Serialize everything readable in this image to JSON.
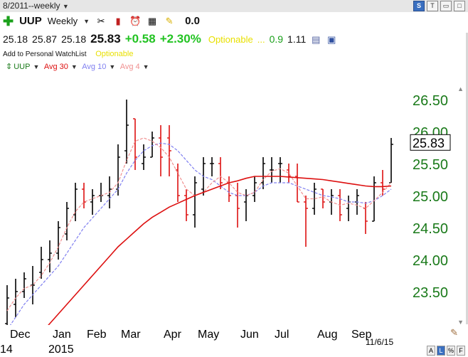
{
  "window": {
    "title": "8/2011--weekly"
  },
  "header": {
    "symbol": "UUP",
    "period": "Weekly",
    "zero_value": "0.0",
    "open": "25.18",
    "high": "25.87",
    "low": "25.18",
    "last": "25.83",
    "change": "+0.58",
    "change_pct": "+2.30%",
    "optionable": "Optionable",
    "dots": "...",
    "val1": "0.9",
    "val2": "1.11",
    "watchlist": "Add to Personal WatchList",
    "optionable2": "Optionable"
  },
  "legend": {
    "symbol": "UUP",
    "ma30": "Avg 30",
    "ma10": "Avg 10",
    "ma4": "Avg 4"
  },
  "colors": {
    "ma30": "#dd1010",
    "ma10": "#8080f0",
    "ma4": "#f09090",
    "up": "#000000",
    "down": "#dd1010",
    "axis": "#1a7a1a"
  },
  "chart_data": {
    "type": "bar",
    "subtype": "ohlc",
    "x_labels": [
      "Dec",
      "Jan",
      "Feb",
      "Mar",
      "Apr",
      "May",
      "Jun",
      "Jul",
      "Aug",
      "Sep"
    ],
    "year_labels": [
      "14",
      "2015"
    ],
    "date_label": "11/6/15",
    "y_ticks": [
      "26.50",
      "26.00",
      "25.50",
      "25.00",
      "24.50",
      "24.00",
      "23.50"
    ],
    "ylim": [
      23.0,
      26.8
    ],
    "last_price_label": "25.83",
    "ohlc": [
      [
        23.0,
        23.6,
        22.9,
        23.4
      ],
      [
        23.3,
        23.7,
        23.1,
        23.5
      ],
      [
        23.5,
        23.8,
        23.4,
        23.7
      ],
      [
        23.6,
        23.9,
        23.3,
        23.6
      ],
      [
        23.8,
        24.2,
        23.7,
        24.0
      ],
      [
        24.0,
        24.3,
        23.8,
        24.1
      ],
      [
        24.1,
        24.6,
        24.0,
        24.5
      ],
      [
        24.4,
        24.9,
        24.3,
        24.8
      ],
      [
        24.7,
        25.2,
        24.6,
        25.1
      ],
      [
        25.1,
        25.2,
        24.8,
        24.9
      ],
      [
        24.9,
        25.1,
        24.7,
        25.0
      ],
      [
        25.0,
        25.2,
        24.9,
        25.0
      ],
      [
        25.0,
        25.3,
        24.8,
        25.1
      ],
      [
        25.1,
        25.8,
        25.0,
        25.6
      ],
      [
        25.7,
        26.5,
        25.5,
        26.1
      ],
      [
        26.2,
        26.2,
        25.4,
        25.6
      ],
      [
        25.5,
        25.8,
        25.4,
        25.6
      ],
      [
        25.6,
        26.0,
        25.6,
        25.9
      ],
      [
        25.9,
        26.1,
        25.3,
        25.6
      ],
      [
        25.9,
        26.1,
        25.3,
        25.7
      ],
      [
        25.4,
        25.5,
        24.9,
        25.0
      ],
      [
        25.0,
        25.1,
        24.6,
        24.7
      ],
      [
        24.7,
        25.3,
        24.5,
        25.2
      ],
      [
        25.1,
        25.6,
        25.0,
        25.5
      ],
      [
        25.5,
        25.6,
        25.3,
        25.5
      ],
      [
        25.5,
        25.6,
        25.1,
        25.2
      ],
      [
        25.2,
        25.3,
        24.9,
        25.0
      ],
      [
        25.0,
        25.2,
        24.5,
        24.8
      ],
      [
        24.9,
        25.1,
        24.6,
        25.0
      ],
      [
        25.0,
        25.3,
        24.9,
        25.2
      ],
      [
        25.2,
        25.6,
        25.1,
        25.5
      ],
      [
        25.4,
        25.6,
        25.2,
        25.4
      ],
      [
        25.5,
        25.6,
        25.2,
        25.5
      ],
      [
        25.4,
        25.5,
        25.2,
        25.3
      ],
      [
        25.3,
        25.5,
        24.9,
        24.9
      ],
      [
        24.9,
        25.0,
        24.2,
        24.8
      ],
      [
        24.8,
        25.2,
        24.7,
        25.1
      ],
      [
        25.1,
        25.1,
        24.8,
        24.9
      ],
      [
        24.9,
        25.1,
        24.7,
        25.0
      ],
      [
        25.0,
        25.1,
        24.6,
        24.7
      ],
      [
        24.8,
        25.0,
        24.6,
        24.9
      ],
      [
        24.9,
        25.1,
        24.7,
        25.0
      ],
      [
        24.8,
        24.9,
        24.4,
        24.6
      ],
      [
        24.6,
        25.3,
        24.6,
        25.2
      ],
      [
        25.2,
        25.4,
        25.0,
        25.1
      ],
      [
        25.2,
        25.9,
        25.2,
        25.8
      ]
    ],
    "ma30": [
      22.4,
      22.5,
      22.6,
      22.7,
      22.85,
      23.0,
      23.15,
      23.3,
      23.45,
      23.6,
      23.75,
      23.9,
      24.05,
      24.2,
      24.32,
      24.44,
      24.56,
      24.66,
      24.74,
      24.82,
      24.88,
      24.94,
      25.0,
      25.05,
      25.1,
      25.15,
      25.2,
      25.23,
      25.27,
      25.3,
      25.3,
      25.3,
      25.3,
      25.29,
      25.28,
      25.27,
      25.26,
      25.25,
      25.23,
      25.21,
      25.19,
      25.17,
      25.15,
      25.14,
      25.14,
      25.15
    ],
    "ma10": [
      22.9,
      23.1,
      23.3,
      23.45,
      23.6,
      23.75,
      23.9,
      24.1,
      24.3,
      24.5,
      24.65,
      24.8,
      24.95,
      25.1,
      25.35,
      25.55,
      25.7,
      25.78,
      25.82,
      25.8,
      25.7,
      25.55,
      25.4,
      25.3,
      25.25,
      25.15,
      25.05,
      25.0,
      25.0,
      25.05,
      25.15,
      25.2,
      25.2,
      25.2,
      25.15,
      25.1,
      25.05,
      25.0,
      24.98,
      24.95,
      24.9,
      24.9,
      24.88,
      24.92,
      25.0,
      25.1
    ],
    "ma4": [
      23.2,
      23.4,
      23.55,
      23.6,
      23.75,
      23.95,
      24.2,
      24.5,
      24.75,
      24.9,
      24.95,
      25.0,
      25.05,
      25.2,
      25.55,
      25.85,
      25.9,
      25.85,
      25.75,
      25.6,
      25.35,
      25.1,
      25.0,
      25.05,
      25.2,
      25.3,
      25.2,
      25.05,
      25.0,
      25.05,
      25.25,
      25.38,
      25.42,
      25.35,
      25.15,
      24.95,
      24.95,
      24.98,
      24.9,
      24.85,
      24.88,
      24.85,
      24.8,
      24.92,
      25.05,
      25.2
    ]
  }
}
